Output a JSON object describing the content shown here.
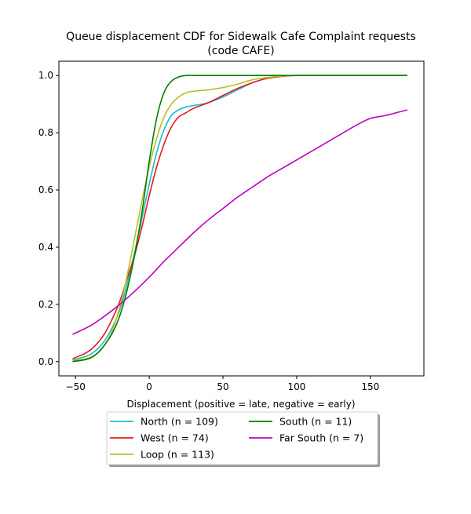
{
  "chart_data": {
    "type": "line",
    "title_line1": "Queue displacement CDF for Sidewalk Cafe Complaint  requests",
    "title_line2": "(code CAFE)",
    "xlabel": "Displacement (positive = late, negative = early)",
    "ylabel": "",
    "xlim": [
      -61.3,
      186.3
    ],
    "ylim": [
      -0.05,
      1.05
    ],
    "xticks": [
      -50,
      0,
      50,
      100,
      150
    ],
    "yticks": [
      0.0,
      0.2,
      0.4,
      0.6,
      0.8,
      1.0
    ],
    "xtick_labels": [
      "−50",
      "0",
      "50",
      "100",
      "150"
    ],
    "ytick_labels": [
      "0.0",
      "0.2",
      "0.4",
      "0.6",
      "0.8",
      "1.0"
    ],
    "grid": false,
    "legend_position": "below",
    "series": [
      {
        "name": "North (n = 109)",
        "color": "#17becf",
        "x": [
          -52,
          -45,
          -40,
          -35,
          -30,
          -25,
          -20,
          -15,
          -10,
          -5,
          0,
          5,
          10,
          15,
          20,
          25,
          30,
          40,
          50,
          60,
          70,
          80,
          90,
          100,
          110,
          120,
          140,
          160,
          175
        ],
        "y": [
          0.005,
          0.015,
          0.025,
          0.045,
          0.075,
          0.12,
          0.18,
          0.27,
          0.38,
          0.5,
          0.62,
          0.73,
          0.81,
          0.86,
          0.88,
          0.89,
          0.895,
          0.905,
          0.925,
          0.95,
          0.975,
          0.99,
          0.997,
          1.0,
          1.0,
          1.0,
          1.0,
          1.0,
          1.0
        ]
      },
      {
        "name": "West (n = 74)",
        "color": "#e41a1c",
        "x": [
          -52,
          -45,
          -40,
          -35,
          -30,
          -25,
          -20,
          -15,
          -10,
          -5,
          0,
          5,
          10,
          15,
          20,
          25,
          30,
          40,
          50,
          60,
          70,
          80,
          90,
          100,
          110,
          120,
          140,
          160,
          175
        ],
        "y": [
          0.01,
          0.025,
          0.04,
          0.065,
          0.1,
          0.15,
          0.21,
          0.29,
          0.37,
          0.47,
          0.58,
          0.68,
          0.76,
          0.82,
          0.855,
          0.87,
          0.885,
          0.905,
          0.93,
          0.955,
          0.975,
          0.99,
          0.997,
          1.0,
          1.0,
          1.0,
          1.0,
          1.0,
          1.0
        ]
      },
      {
        "name": "Loop (n = 113)",
        "color": "#bcbd22",
        "x": [
          -52,
          -45,
          -40,
          -35,
          -30,
          -25,
          -20,
          -15,
          -10,
          -5,
          0,
          5,
          10,
          15,
          20,
          25,
          30,
          40,
          50,
          60,
          70,
          80,
          90,
          100,
          110,
          120,
          140,
          160,
          175
        ],
        "y": [
          0.003,
          0.008,
          0.015,
          0.03,
          0.06,
          0.11,
          0.19,
          0.3,
          0.43,
          0.56,
          0.68,
          0.78,
          0.855,
          0.9,
          0.925,
          0.94,
          0.945,
          0.95,
          0.958,
          0.97,
          0.985,
          0.993,
          0.998,
          1.0,
          1.0,
          1.0,
          1.0,
          1.0,
          1.0
        ]
      },
      {
        "name": "South (n = 11)",
        "color": "#008000",
        "x": [
          -52,
          -45,
          -40,
          -35,
          -30,
          -25,
          -20,
          -15,
          -10,
          -5,
          0,
          5,
          10,
          15,
          20,
          25,
          30,
          40,
          50,
          60,
          70,
          80,
          90,
          100,
          110,
          120,
          140,
          160,
          175
        ],
        "y": [
          0.0,
          0.005,
          0.012,
          0.03,
          0.06,
          0.1,
          0.16,
          0.25,
          0.37,
          0.52,
          0.7,
          0.85,
          0.94,
          0.98,
          0.995,
          1.0,
          1.0,
          1.0,
          1.0,
          1.0,
          1.0,
          1.0,
          1.0,
          1.0,
          1.0,
          1.0,
          1.0,
          1.0,
          1.0
        ]
      },
      {
        "name": "Far South (n = 7)",
        "color": "#c000c0",
        "x": [
          -52,
          -40,
          -30,
          -20,
          -10,
          0,
          10,
          20,
          30,
          40,
          50,
          60,
          70,
          80,
          90,
          100,
          110,
          120,
          130,
          140,
          150,
          160,
          175
        ],
        "y": [
          0.095,
          0.125,
          0.16,
          0.2,
          0.245,
          0.295,
          0.35,
          0.4,
          0.45,
          0.495,
          0.535,
          0.575,
          0.61,
          0.645,
          0.675,
          0.705,
          0.735,
          0.765,
          0.795,
          0.825,
          0.85,
          0.86,
          0.88
        ]
      }
    ]
  }
}
